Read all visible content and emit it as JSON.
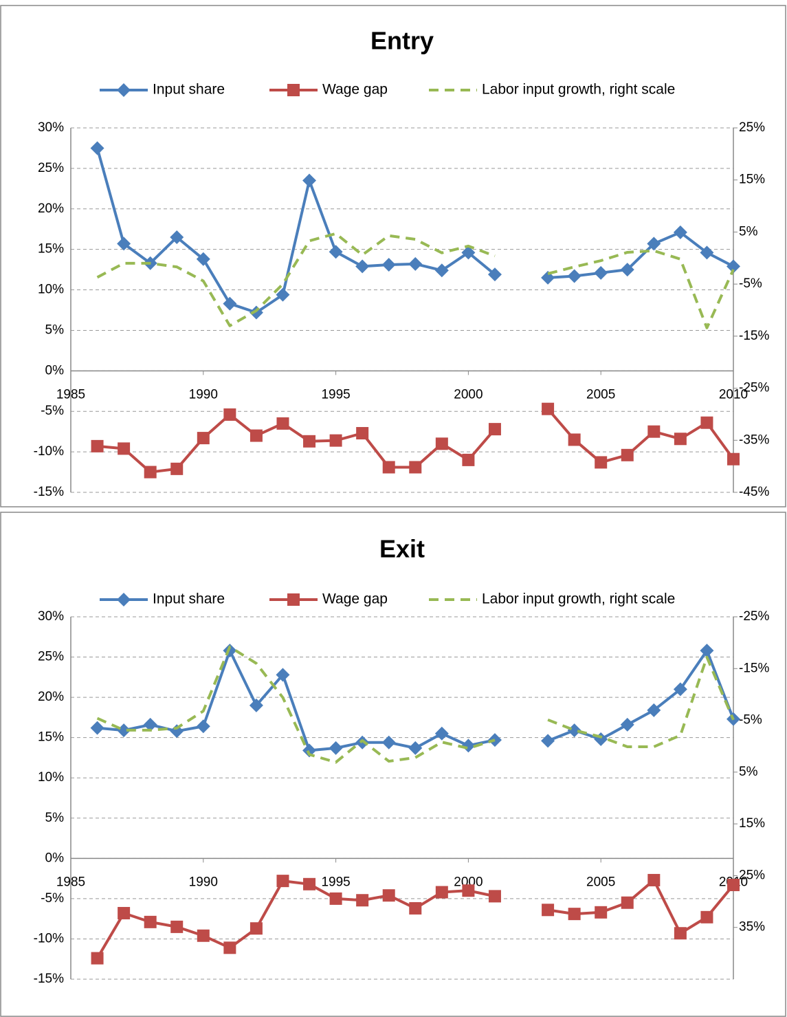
{
  "chart_data": [
    {
      "type": "line",
      "title": "Entry",
      "x": [
        1986,
        1987,
        1988,
        1989,
        1990,
        1991,
        1992,
        1993,
        1994,
        1995,
        1996,
        1997,
        1998,
        1999,
        2000,
        2001,
        2002,
        2003,
        2004,
        2005,
        2006,
        2007,
        2008,
        2009,
        2010
      ],
      "xlim": [
        1985,
        2010
      ],
      "xticks": [
        1985,
        1990,
        1995,
        2000,
        2005,
        2010
      ],
      "ylim": [
        -15,
        30
      ],
      "yticks": [
        {
          "value": -15,
          "label": "-15%"
        },
        {
          "value": -10,
          "label": "-10%"
        },
        {
          "value": -5,
          "label": "-5%"
        },
        {
          "value": 0,
          "label": "0%"
        },
        {
          "value": 5,
          "label": "5%"
        },
        {
          "value": 10,
          "label": "10%"
        },
        {
          "value": 15,
          "label": "15%"
        },
        {
          "value": 20,
          "label": "20%"
        },
        {
          "value": 25,
          "label": "25%"
        },
        {
          "value": 30,
          "label": "30%"
        }
      ],
      "y2lim": [
        -45,
        25
      ],
      "y2ticks": [
        {
          "value": -45,
          "label": "-45%"
        },
        {
          "value": -35,
          "label": "-35%"
        },
        {
          "value": -25,
          "label": "-25%"
        },
        {
          "value": -15,
          "label": "-15%"
        },
        {
          "value": -5,
          "label": "-5%"
        },
        {
          "value": 5,
          "label": "5%"
        },
        {
          "value": 15,
          "label": "15%"
        },
        {
          "value": 25,
          "label": "25%"
        }
      ],
      "grid": true,
      "series": [
        {
          "name": "Input share",
          "color": "#4a7ebb",
          "marker": "diamond",
          "values": [
            27.5,
            15.7,
            13.3,
            16.5,
            13.8,
            8.3,
            7.2,
            9.4,
            23.5,
            14.7,
            12.9,
            13.1,
            13.2,
            12.4,
            14.6,
            11.9,
            null,
            11.5,
            11.7,
            12.1,
            12.5,
            15.7,
            17.1,
            14.6,
            12.9
          ]
        },
        {
          "name": "Wage gap",
          "color": "#be4b48",
          "marker": "square",
          "values": [
            -9.3,
            -9.6,
            -12.5,
            -12.1,
            -8.3,
            -5.4,
            -8.0,
            -6.5,
            -8.7,
            -8.6,
            -7.7,
            -11.9,
            -11.9,
            -9.0,
            -11.0,
            -7.2,
            null,
            -4.7,
            -8.5,
            -11.3,
            -10.4,
            -7.5,
            -8.4,
            -6.4,
            -10.9
          ]
        },
        {
          "name": "Labor input growth, right scale",
          "color": "#98b954",
          "dash": true,
          "axis": "y2",
          "values": [
            -3.7,
            -1.0,
            -1.0,
            -1.7,
            -4.4,
            -13.0,
            -10.1,
            -5.0,
            3.3,
            4.7,
            0.6,
            4.3,
            3.6,
            1.0,
            2.3,
            0.4,
            null,
            -3.0,
            -1.7,
            -0.5,
            1.1,
            1.4,
            -0.2,
            -13.4,
            -2.2
          ]
        }
      ]
    },
    {
      "type": "line",
      "title": "Exit",
      "x": [
        1986,
        1987,
        1988,
        1989,
        1990,
        1991,
        1992,
        1993,
        1994,
        1995,
        1996,
        1997,
        1998,
        1999,
        2000,
        2001,
        2002,
        2003,
        2004,
        2005,
        2006,
        2007,
        2008,
        2009,
        2010
      ],
      "xlim": [
        1985,
        2010
      ],
      "xticks": [
        1985,
        1990,
        1995,
        2000,
        2005,
        2010
      ],
      "ylim": [
        -15,
        30
      ],
      "yticks": [
        {
          "value": -15,
          "label": "-15%"
        },
        {
          "value": -10,
          "label": "-10%"
        },
        {
          "value": -5,
          "label": "-5%"
        },
        {
          "value": 0,
          "label": "0%"
        },
        {
          "value": 5,
          "label": "5%"
        },
        {
          "value": 10,
          "label": "10%"
        },
        {
          "value": 15,
          "label": "15%"
        },
        {
          "value": 20,
          "label": "20%"
        },
        {
          "value": 25,
          "label": "25%"
        },
        {
          "value": 30,
          "label": "30%"
        }
      ],
      "y2lim": [
        45,
        -25
      ],
      "y2ticks": [
        {
          "value": 35,
          "label": "35%"
        },
        {
          "value": 25,
          "label": "25%"
        },
        {
          "value": 15,
          "label": "15%"
        },
        {
          "value": 5,
          "label": "5%"
        },
        {
          "value": -5,
          "label": "-5%"
        },
        {
          "value": -15,
          "label": "-15%"
        },
        {
          "value": -25,
          "label": "-25%"
        }
      ],
      "grid": true,
      "series": [
        {
          "name": "Input share",
          "color": "#4a7ebb",
          "marker": "diamond",
          "values": [
            16.2,
            15.9,
            16.6,
            15.8,
            16.4,
            25.8,
            19.0,
            22.8,
            13.4,
            13.7,
            14.4,
            14.4,
            13.7,
            15.5,
            14.0,
            14.7,
            null,
            14.6,
            15.9,
            14.8,
            16.6,
            18.4,
            21.0,
            25.8,
            17.3
          ]
        },
        {
          "name": "Wage gap",
          "color": "#be4b48",
          "marker": "square",
          "values": [
            -12.4,
            -6.8,
            -7.9,
            -8.5,
            -9.6,
            -11.1,
            -8.7,
            -2.8,
            -3.2,
            -5.0,
            -5.2,
            -4.6,
            -6.2,
            -4.2,
            -4.0,
            -4.7,
            null,
            -6.4,
            -6.9,
            -6.7,
            -5.5,
            -2.7,
            -9.3,
            -7.3,
            -3.3
          ]
        },
        {
          "name": "Labor input growth, right scale",
          "color": "#98b954",
          "dash": true,
          "axis": "y2",
          "values": [
            -5.4,
            -3.1,
            -3.1,
            -3.5,
            -6.8,
            -19.2,
            -16.0,
            -9.4,
            1.6,
            3.1,
            -1.1,
            2.9,
            2.2,
            -0.8,
            0.4,
            -1.2,
            null,
            -5.1,
            -3.1,
            -1.8,
            0.1,
            0.1,
            -2.1,
            -17.2,
            -5.1
          ]
        }
      ]
    }
  ]
}
